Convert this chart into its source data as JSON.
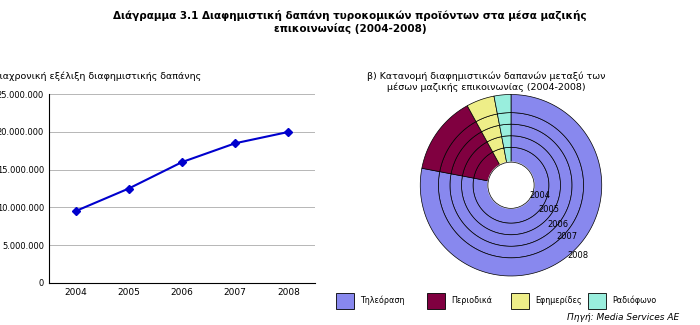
{
  "title": "Διάγραμμα 3.1 Διαφημιστική δαπάνη τυροκομικών προϊόντων στα μέσα μαζικής\nεπικοινωνίας (2004-2008)",
  "subtitle_a": "α) Διαχρονική εξέλιξη διαφημιστικής δαπάνης",
  "subtitle_b": "β) Κατανομή διαφημιστικών δαπανών μεταξύ των\nμέσων μαζικής επικοινωνίας (2004-2008)",
  "source": "Πηγή: Media Services ΑΕ",
  "line_years": [
    2004,
    2005,
    2006,
    2007,
    2008
  ],
  "line_values": [
    9500000,
    12500000,
    16000000,
    18500000,
    20000000
  ],
  "ylabel": "€",
  "ylim": [
    0,
    25000000
  ],
  "yticks": [
    0,
    5000000,
    10000000,
    15000000,
    20000000,
    25000000
  ],
  "ytick_labels": [
    "0",
    "5.000.000",
    "10.000.000",
    "15.000.000",
    "20.000.000",
    "25.000.000"
  ],
  "line_color": "#0000CD",
  "marker": "D",
  "donut_years": [
    "2004",
    "2005",
    "2006",
    "2007",
    "2008"
  ],
  "donut_data": [
    [
      0.78,
      0.14,
      0.05,
      0.03
    ],
    [
      0.78,
      0.14,
      0.05,
      0.03
    ],
    [
      0.78,
      0.14,
      0.05,
      0.03
    ],
    [
      0.78,
      0.14,
      0.05,
      0.03
    ],
    [
      0.78,
      0.14,
      0.05,
      0.03
    ]
  ],
  "donut_colors": [
    "#8888EE",
    "#800040",
    "#EEEE88",
    "#99EEDD"
  ],
  "legend_labels": [
    "Τηλεόραση",
    "Περιοδικά",
    "Εφημερίδες",
    "Ραδιόφωνο"
  ],
  "bg_color": "#FFFFFF"
}
